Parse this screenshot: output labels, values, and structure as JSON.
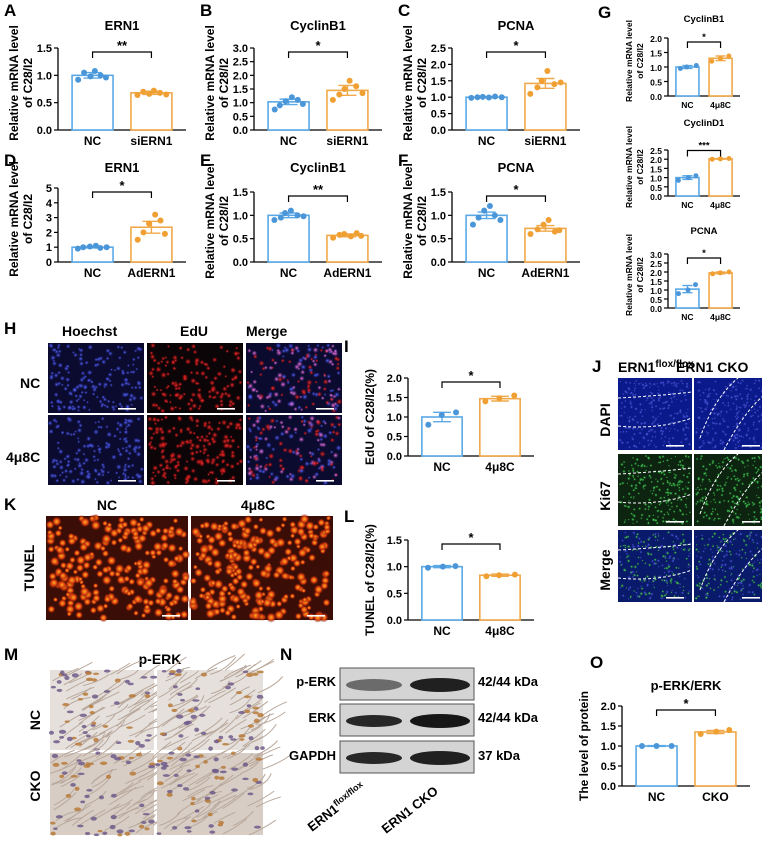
{
  "colors": {
    "nc": "#5aa9e6",
    "treat": "#f0a94a",
    "nc_point": "#4a96d8",
    "treat_point": "#f0a032",
    "fluor_bg": "#0b0b30",
    "tunel_bg": "#3a0d06"
  },
  "panels": {
    "A": {
      "label": "A"
    },
    "B": {
      "label": "B"
    },
    "C": {
      "label": "C"
    },
    "D": {
      "label": "D"
    },
    "E": {
      "label": "E"
    },
    "F": {
      "label": "F"
    },
    "G": {
      "label": "G"
    },
    "H": {
      "label": "H"
    },
    "I": {
      "label": "I"
    },
    "J": {
      "label": "J"
    },
    "K": {
      "label": "K"
    },
    "L": {
      "label": "L"
    },
    "M": {
      "label": "M"
    },
    "N": {
      "label": "N"
    },
    "O": {
      "label": "O"
    }
  },
  "yaxis_labels": {
    "mrna_line1": "Relative mRNA level",
    "mrna_line2": "of C28/I2"
  },
  "panel_h": {
    "headers": [
      "Hoechst",
      "EdU",
      "Merge"
    ],
    "rows": [
      "NC",
      "4μ8C"
    ]
  },
  "panel_j": {
    "header_left": "ERN1",
    "header_left_sup": "flox/flox",
    "header_right": "ERN1 CKO",
    "rows": [
      "DAPI",
      "Ki67",
      "Merge"
    ]
  },
  "panel_k": {
    "headers": [
      "NC",
      "4μ8C"
    ],
    "row": "TUNEL"
  },
  "panel_m": {
    "title": "p-ERK",
    "rows": [
      "NC",
      "CKO"
    ]
  },
  "panel_n": {
    "bands": [
      {
        "name": "p-ERK",
        "size": "42/44 kDa"
      },
      {
        "name": "ERK",
        "size": "42/44 kDa"
      },
      {
        "name": "GAPDH",
        "size": "37 kDa"
      }
    ],
    "lane1": "ERN1",
    "lane1_sup": "flox/flox",
    "lane2": "ERN1 CKO"
  },
  "chart_data": [
    {
      "id": "A",
      "type": "bar",
      "title": "ERN1",
      "ylabel": "Relative mRNA level of C28/I2",
      "categories": [
        "NC",
        "siERN1"
      ],
      "values": [
        1.0,
        0.68
      ],
      "errors": [
        0.05,
        0.03
      ],
      "points": [
        [
          0.92,
          1.05,
          0.98,
          1.08,
          1.0,
          0.96
        ],
        [
          0.64,
          0.7,
          0.66,
          0.72,
          0.68,
          0.65
        ]
      ],
      "ylim": [
        0,
        1.5
      ],
      "yticks": [
        "0.0",
        "0.5",
        "1.0",
        "1.5"
      ],
      "significance": "**"
    },
    {
      "id": "B",
      "type": "bar",
      "title": "CyclinB1",
      "ylabel": "Relative mRNA level of C28/I2",
      "categories": [
        "NC",
        "siERN1"
      ],
      "values": [
        1.03,
        1.45
      ],
      "errors": [
        0.1,
        0.18
      ],
      "points": [
        [
          0.75,
          0.9,
          1.05,
          1.2,
          1.1,
          0.95
        ],
        [
          1.1,
          1.3,
          1.5,
          1.8,
          1.6,
          1.35
        ]
      ],
      "ylim": [
        0,
        3.0
      ],
      "yticks": [
        "0.0",
        "0.5",
        "1.0",
        "1.5",
        "2.0",
        "2.5",
        "3.0"
      ],
      "significance": "*"
    },
    {
      "id": "C",
      "type": "bar",
      "title": "PCNA",
      "ylabel": "Relative mRNA level of C28/I2",
      "categories": [
        "NC",
        "siERN1"
      ],
      "values": [
        1.0,
        1.42
      ],
      "errors": [
        0.02,
        0.15
      ],
      "points": [
        [
          0.98,
          1.0,
          1.01,
          0.99,
          1.02,
          1.0
        ],
        [
          1.1,
          1.3,
          1.5,
          1.8,
          1.4,
          1.45
        ]
      ],
      "ylim": [
        0,
        2.5
      ],
      "yticks": [
        "0.0",
        "0.5",
        "1.0",
        "1.5",
        "2.0",
        "2.5"
      ],
      "significance": "*"
    },
    {
      "id": "D",
      "type": "bar",
      "title": "ERN1",
      "ylabel": "Relative mRNA level of C28/I2",
      "categories": [
        "NC",
        "AdERN1"
      ],
      "values": [
        1.0,
        2.35
      ],
      "errors": [
        0.05,
        0.4
      ],
      "points": [
        [
          0.9,
          1.0,
          1.05,
          1.1,
          0.95,
          1.0
        ],
        [
          1.5,
          2.0,
          2.6,
          3.2,
          2.8,
          1.9
        ]
      ],
      "ylim": [
        0,
        5
      ],
      "yticks": [
        "0",
        "1",
        "2",
        "3",
        "4",
        "5"
      ],
      "significance": "*"
    },
    {
      "id": "E",
      "type": "bar",
      "title": "CyclinB1",
      "ylabel": "Relative mRNA level of C28/I2",
      "categories": [
        "NC",
        "AdERN1"
      ],
      "values": [
        1.0,
        0.57
      ],
      "errors": [
        0.05,
        0.03
      ],
      "points": [
        [
          0.9,
          0.95,
          1.05,
          1.1,
          1.0,
          0.98
        ],
        [
          0.52,
          0.58,
          0.6,
          0.55,
          0.62,
          0.56
        ]
      ],
      "ylim": [
        0,
        1.5
      ],
      "yticks": [
        "0.0",
        "0.5",
        "1.0",
        "1.5"
      ],
      "significance": "**"
    },
    {
      "id": "F",
      "type": "bar",
      "title": "PCNA",
      "ylabel": "Relative mRNA level of C28/I2",
      "categories": [
        "NC",
        "AdERN1"
      ],
      "values": [
        1.0,
        0.72
      ],
      "errors": [
        0.07,
        0.06
      ],
      "points": [
        [
          0.8,
          0.95,
          1.1,
          1.2,
          1.0,
          0.9
        ],
        [
          0.6,
          0.7,
          0.8,
          0.9,
          0.65,
          0.68
        ]
      ],
      "ylim": [
        0,
        1.5
      ],
      "yticks": [
        "0.0",
        "0.5",
        "1.0",
        "1.5"
      ],
      "significance": "*"
    },
    {
      "id": "G1",
      "type": "bar",
      "title": "CyclinB1",
      "ylabel": "Relative mRNA level of C28/I2",
      "categories": [
        "NC",
        "4μ8C"
      ],
      "values": [
        1.0,
        1.3
      ],
      "errors": [
        0.05,
        0.08
      ],
      "points": [
        [
          0.95,
          1.0,
          1.05
        ],
        [
          1.2,
          1.3,
          1.38
        ]
      ],
      "ylim": [
        0,
        2.0
      ],
      "yticks": [
        "0.0",
        "0.5",
        "1.0",
        "1.5",
        "2.0"
      ],
      "significance": "*"
    },
    {
      "id": "G2",
      "type": "bar",
      "title": "CyclinD1",
      "ylabel": "Relative mRNA level of C28/I2",
      "categories": [
        "NC",
        "4μ8C"
      ],
      "values": [
        1.0,
        2.02
      ],
      "errors": [
        0.1,
        0.02
      ],
      "points": [
        [
          0.85,
          1.0,
          1.1
        ],
        [
          2.0,
          2.02,
          2.04
        ]
      ],
      "ylim": [
        0,
        2.5
      ],
      "yticks": [
        "0.0",
        "0.5",
        "1.0",
        "1.5",
        "2.0",
        "2.5"
      ],
      "significance": "***"
    },
    {
      "id": "G3",
      "type": "bar",
      "title": "PCNA",
      "ylabel": "Relative mRNA level of C28/I2",
      "categories": [
        "NC",
        "4μ8C"
      ],
      "values": [
        1.05,
        1.95
      ],
      "errors": [
        0.2,
        0.05
      ],
      "points": [
        [
          0.8,
          1.0,
          1.3
        ],
        [
          1.9,
          1.95,
          2.0
        ]
      ],
      "ylim": [
        0,
        3.0
      ],
      "yticks": [
        "0.0",
        "0.5",
        "1.0",
        "1.5",
        "2.0",
        "2.5",
        "3.0"
      ],
      "significance": "*"
    },
    {
      "id": "I",
      "type": "bar",
      "title": "",
      "ylabel": "EdU of C28/I2(%)",
      "categories": [
        "NC",
        "4μ8C"
      ],
      "values": [
        1.0,
        1.47
      ],
      "errors": [
        0.12,
        0.06
      ],
      "points": [
        [
          0.8,
          1.05,
          1.12
        ],
        [
          1.4,
          1.48,
          1.55
        ]
      ],
      "ylim": [
        0,
        2.0
      ],
      "yticks": [
        "0.0",
        "0.5",
        "1.0",
        "1.5",
        "2.0"
      ],
      "significance": "*"
    },
    {
      "id": "L",
      "type": "bar",
      "title": "",
      "ylabel": "TUNEL of C28/I2(%)",
      "categories": [
        "NC",
        "4μ8C"
      ],
      "values": [
        1.0,
        0.84
      ],
      "errors": [
        0.02,
        0.02
      ],
      "points": [
        [
          0.98,
          1.0,
          1.01
        ],
        [
          0.82,
          0.84,
          0.85
        ]
      ],
      "ylim": [
        0,
        1.5
      ],
      "yticks": [
        "0.0",
        "0.5",
        "1.0",
        "1.5"
      ],
      "significance": "*"
    },
    {
      "id": "O",
      "type": "bar",
      "title": "p-ERK/ERK",
      "ylabel": "The level of protein",
      "categories": [
        "NC",
        "CKO"
      ],
      "values": [
        1.0,
        1.35
      ],
      "errors": [
        0.01,
        0.04
      ],
      "points": [
        [
          1.0,
          1.0,
          1.0
        ],
        [
          1.3,
          1.36,
          1.4
        ]
      ],
      "ylim": [
        0,
        2.0
      ],
      "yticks": [
        "0.0",
        "0.5",
        "1.0",
        "1.5",
        "2.0"
      ],
      "significance": "*"
    }
  ]
}
